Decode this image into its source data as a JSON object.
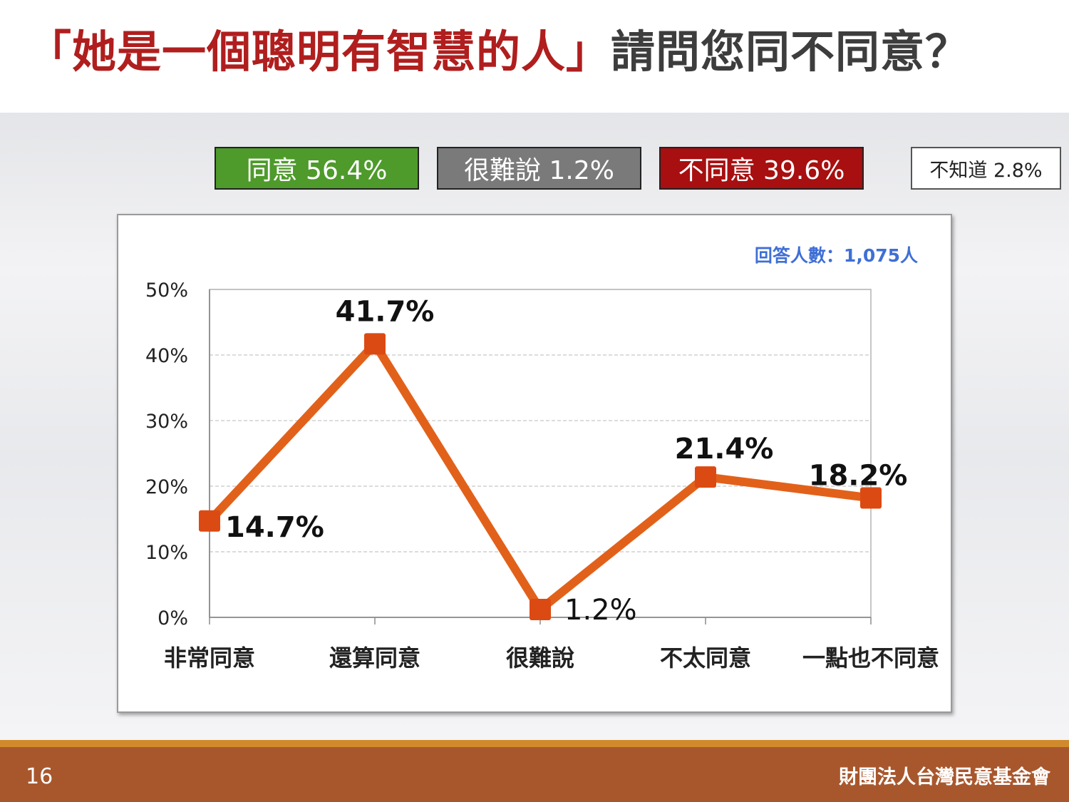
{
  "title": {
    "highlight": "「她是一個聰明有智慧的人」",
    "rest": "請問您同不同意？"
  },
  "summary": {
    "agree": "同意 56.4%",
    "hard_to_say": "很難說 1.2%",
    "disagree": "不同意 39.6%",
    "dont_know": "不知道 2.8%"
  },
  "colors": {
    "line": "#e2611a",
    "marker": "#dc4a13",
    "agree": "#4e9a2b",
    "hard_to_say": "#7a7a7a",
    "disagree": "#a80f10",
    "respondents_text": "#3f6fd6",
    "title_red": "#b01e1e"
  },
  "chart_data": {
    "type": "line",
    "respondents": "回答人數：1,075人",
    "categories": [
      "非常同意",
      "還算同意",
      "很難說",
      "不太同意",
      "一點也不同意"
    ],
    "values": [
      14.7,
      41.7,
      1.2,
      21.4,
      18.2
    ],
    "data_labels": [
      "14.7%",
      "41.7%",
      "1.2%",
      "21.4%",
      "18.2%"
    ],
    "y_ticks": [
      "0%",
      "10%",
      "20%",
      "30%",
      "40%",
      "50%"
    ],
    "ylim": [
      0,
      50
    ],
    "grid": true
  },
  "footer": {
    "page": "16",
    "org": "財團法人台灣民意基金會"
  }
}
